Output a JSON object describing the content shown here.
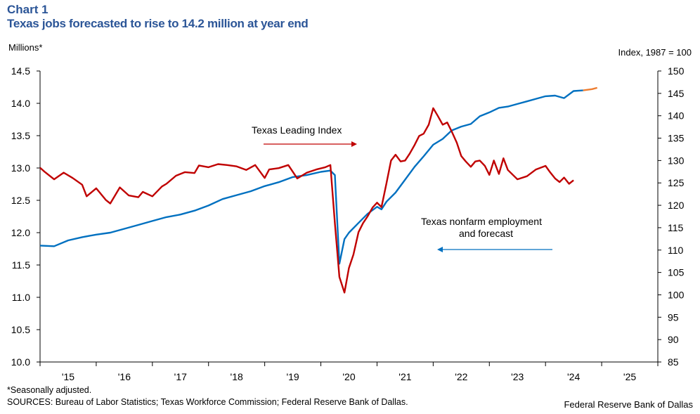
{
  "header": {
    "chart_label": "Chart 1",
    "title": "Texas jobs forecasted to rise to 14.2 million at year end"
  },
  "footer": {
    "note": "*Seasonally adjusted.",
    "sources": "SOURCES: Bureau of Labor Statistics; Texas Workforce Commission; Federal Reserve Bank of Dallas.",
    "brand": "Federal Reserve Bank of Dallas"
  },
  "colors": {
    "employment": "#0070C0",
    "forecast": "#ED7D31",
    "leading_index": "#C00000",
    "title": "#2B5597"
  },
  "chart_data": {
    "type": "line",
    "title": "Texas jobs forecasted to rise to 14.2 million at year end",
    "ylabel_left": "Millions*",
    "ylabel_right": "Index,  1987 = 100",
    "ylim_left": [
      10.0,
      14.5
    ],
    "ylim_right": [
      85,
      150
    ],
    "xlim": [
      2015,
      2026
    ],
    "yticks_left": [
      "10.0",
      "10.5",
      "11.0",
      "11.5",
      "12.0",
      "12.5",
      "13.0",
      "13.5",
      "14.0",
      "14.5"
    ],
    "yticks_right": [
      "85",
      "90",
      "95",
      "100",
      "105",
      "110",
      "115",
      "120",
      "125",
      "130",
      "135",
      "140",
      "145",
      "150"
    ],
    "xticks": [
      "'15",
      "'16",
      "'17",
      "'18",
      "'19",
      "'20",
      "'21",
      "'22",
      "'23",
      "'24",
      "'25"
    ],
    "grid": false,
    "annotations": {
      "leading_index": "Texas Leading Index",
      "employment": "Texas nonfarm employment",
      "forecast": "and forecast"
    },
    "series": [
      {
        "name": "Texas nonfarm employment",
        "axis": "left",
        "x": [
          2015.0,
          2015.25,
          2015.5,
          2015.75,
          2016.0,
          2016.25,
          2016.5,
          2016.75,
          2017.0,
          2017.25,
          2017.5,
          2017.75,
          2018.0,
          2018.25,
          2018.5,
          2018.75,
          2019.0,
          2019.25,
          2019.5,
          2019.75,
          2020.0,
          2020.17,
          2020.25,
          2020.33,
          2020.42,
          2020.5,
          2020.67,
          2020.83,
          2021.0,
          2021.08,
          2021.17,
          2021.33,
          2021.5,
          2021.67,
          2021.83,
          2022.0,
          2022.17,
          2022.33,
          2022.5,
          2022.67,
          2022.83,
          2023.0,
          2023.17,
          2023.33,
          2023.5,
          2023.67,
          2023.83,
          2024.0,
          2024.17,
          2024.33,
          2024.5,
          2024.67
        ],
        "values": [
          11.8,
          11.79,
          11.88,
          11.93,
          11.97,
          12.0,
          12.06,
          12.12,
          12.18,
          12.24,
          12.28,
          12.34,
          12.42,
          12.52,
          12.58,
          12.64,
          12.72,
          12.78,
          12.86,
          12.89,
          12.94,
          12.96,
          12.89,
          11.52,
          11.9,
          12.0,
          12.15,
          12.29,
          12.4,
          12.36,
          12.48,
          12.62,
          12.82,
          13.02,
          13.18,
          13.36,
          13.45,
          13.58,
          13.64,
          13.68,
          13.8,
          13.86,
          13.93,
          13.95,
          13.99,
          14.03,
          14.07,
          14.11,
          14.12,
          14.08,
          14.19,
          14.2
        ]
      },
      {
        "name": "Forecast",
        "axis": "left",
        "x": [
          2024.67,
          2024.83,
          2024.92
        ],
        "values": [
          14.2,
          14.22,
          14.24
        ]
      },
      {
        "name": "Texas Leading Index",
        "axis": "right",
        "x": [
          2015.0,
          2015.08,
          2015.25,
          2015.42,
          2015.58,
          2015.75,
          2015.83,
          2016.0,
          2016.17,
          2016.25,
          2016.42,
          2016.58,
          2016.75,
          2016.83,
          2017.0,
          2017.17,
          2017.25,
          2017.42,
          2017.58,
          2017.75,
          2017.83,
          2018.0,
          2018.17,
          2018.33,
          2018.5,
          2018.67,
          2018.83,
          2019.0,
          2019.08,
          2019.25,
          2019.42,
          2019.58,
          2019.75,
          2019.92,
          2020.08,
          2020.17,
          2020.25,
          2020.33,
          2020.42,
          2020.5,
          2020.58,
          2020.67,
          2020.75,
          2020.83,
          2020.92,
          2021.0,
          2021.08,
          2021.17,
          2021.25,
          2021.33,
          2021.42,
          2021.5,
          2021.58,
          2021.67,
          2021.75,
          2021.83,
          2021.92,
          2022.0,
          2022.08,
          2022.17,
          2022.25,
          2022.33,
          2022.42,
          2022.5,
          2022.58,
          2022.67,
          2022.75,
          2022.83,
          2022.92,
          2023.0,
          2023.08,
          2023.17,
          2023.25,
          2023.33,
          2023.5,
          2023.67,
          2023.83,
          2024.0,
          2024.08,
          2024.17,
          2024.25,
          2024.33,
          2024.42,
          2024.5
        ],
        "values": [
          128.4,
          127.5,
          125.8,
          127.3,
          126.1,
          124.6,
          122.0,
          123.8,
          121.2,
          120.4,
          124.0,
          122.2,
          121.8,
          123.0,
          122.0,
          124.2,
          124.8,
          126.6,
          127.4,
          127.2,
          128.9,
          128.5,
          129.2,
          129.0,
          128.7,
          127.9,
          129.0,
          126.1,
          128.0,
          128.3,
          129.0,
          126.0,
          127.3,
          128.0,
          128.5,
          129.0,
          116.0,
          104.0,
          100.5,
          106.0,
          109.0,
          114.0,
          116.0,
          117.5,
          119.5,
          120.6,
          119.6,
          125.0,
          130.0,
          131.3,
          129.8,
          130.0,
          131.5,
          133.5,
          135.5,
          136.0,
          138.0,
          141.7,
          140.0,
          138.0,
          138.5,
          136.5,
          134.0,
          131.0,
          129.8,
          128.6,
          129.8,
          130.0,
          128.8,
          126.8,
          130.0,
          127.0,
          130.5,
          127.9,
          125.8,
          126.5,
          128.0,
          128.8,
          127.4,
          126.0,
          125.2,
          126.2,
          124.8,
          125.6
        ]
      }
    ]
  }
}
